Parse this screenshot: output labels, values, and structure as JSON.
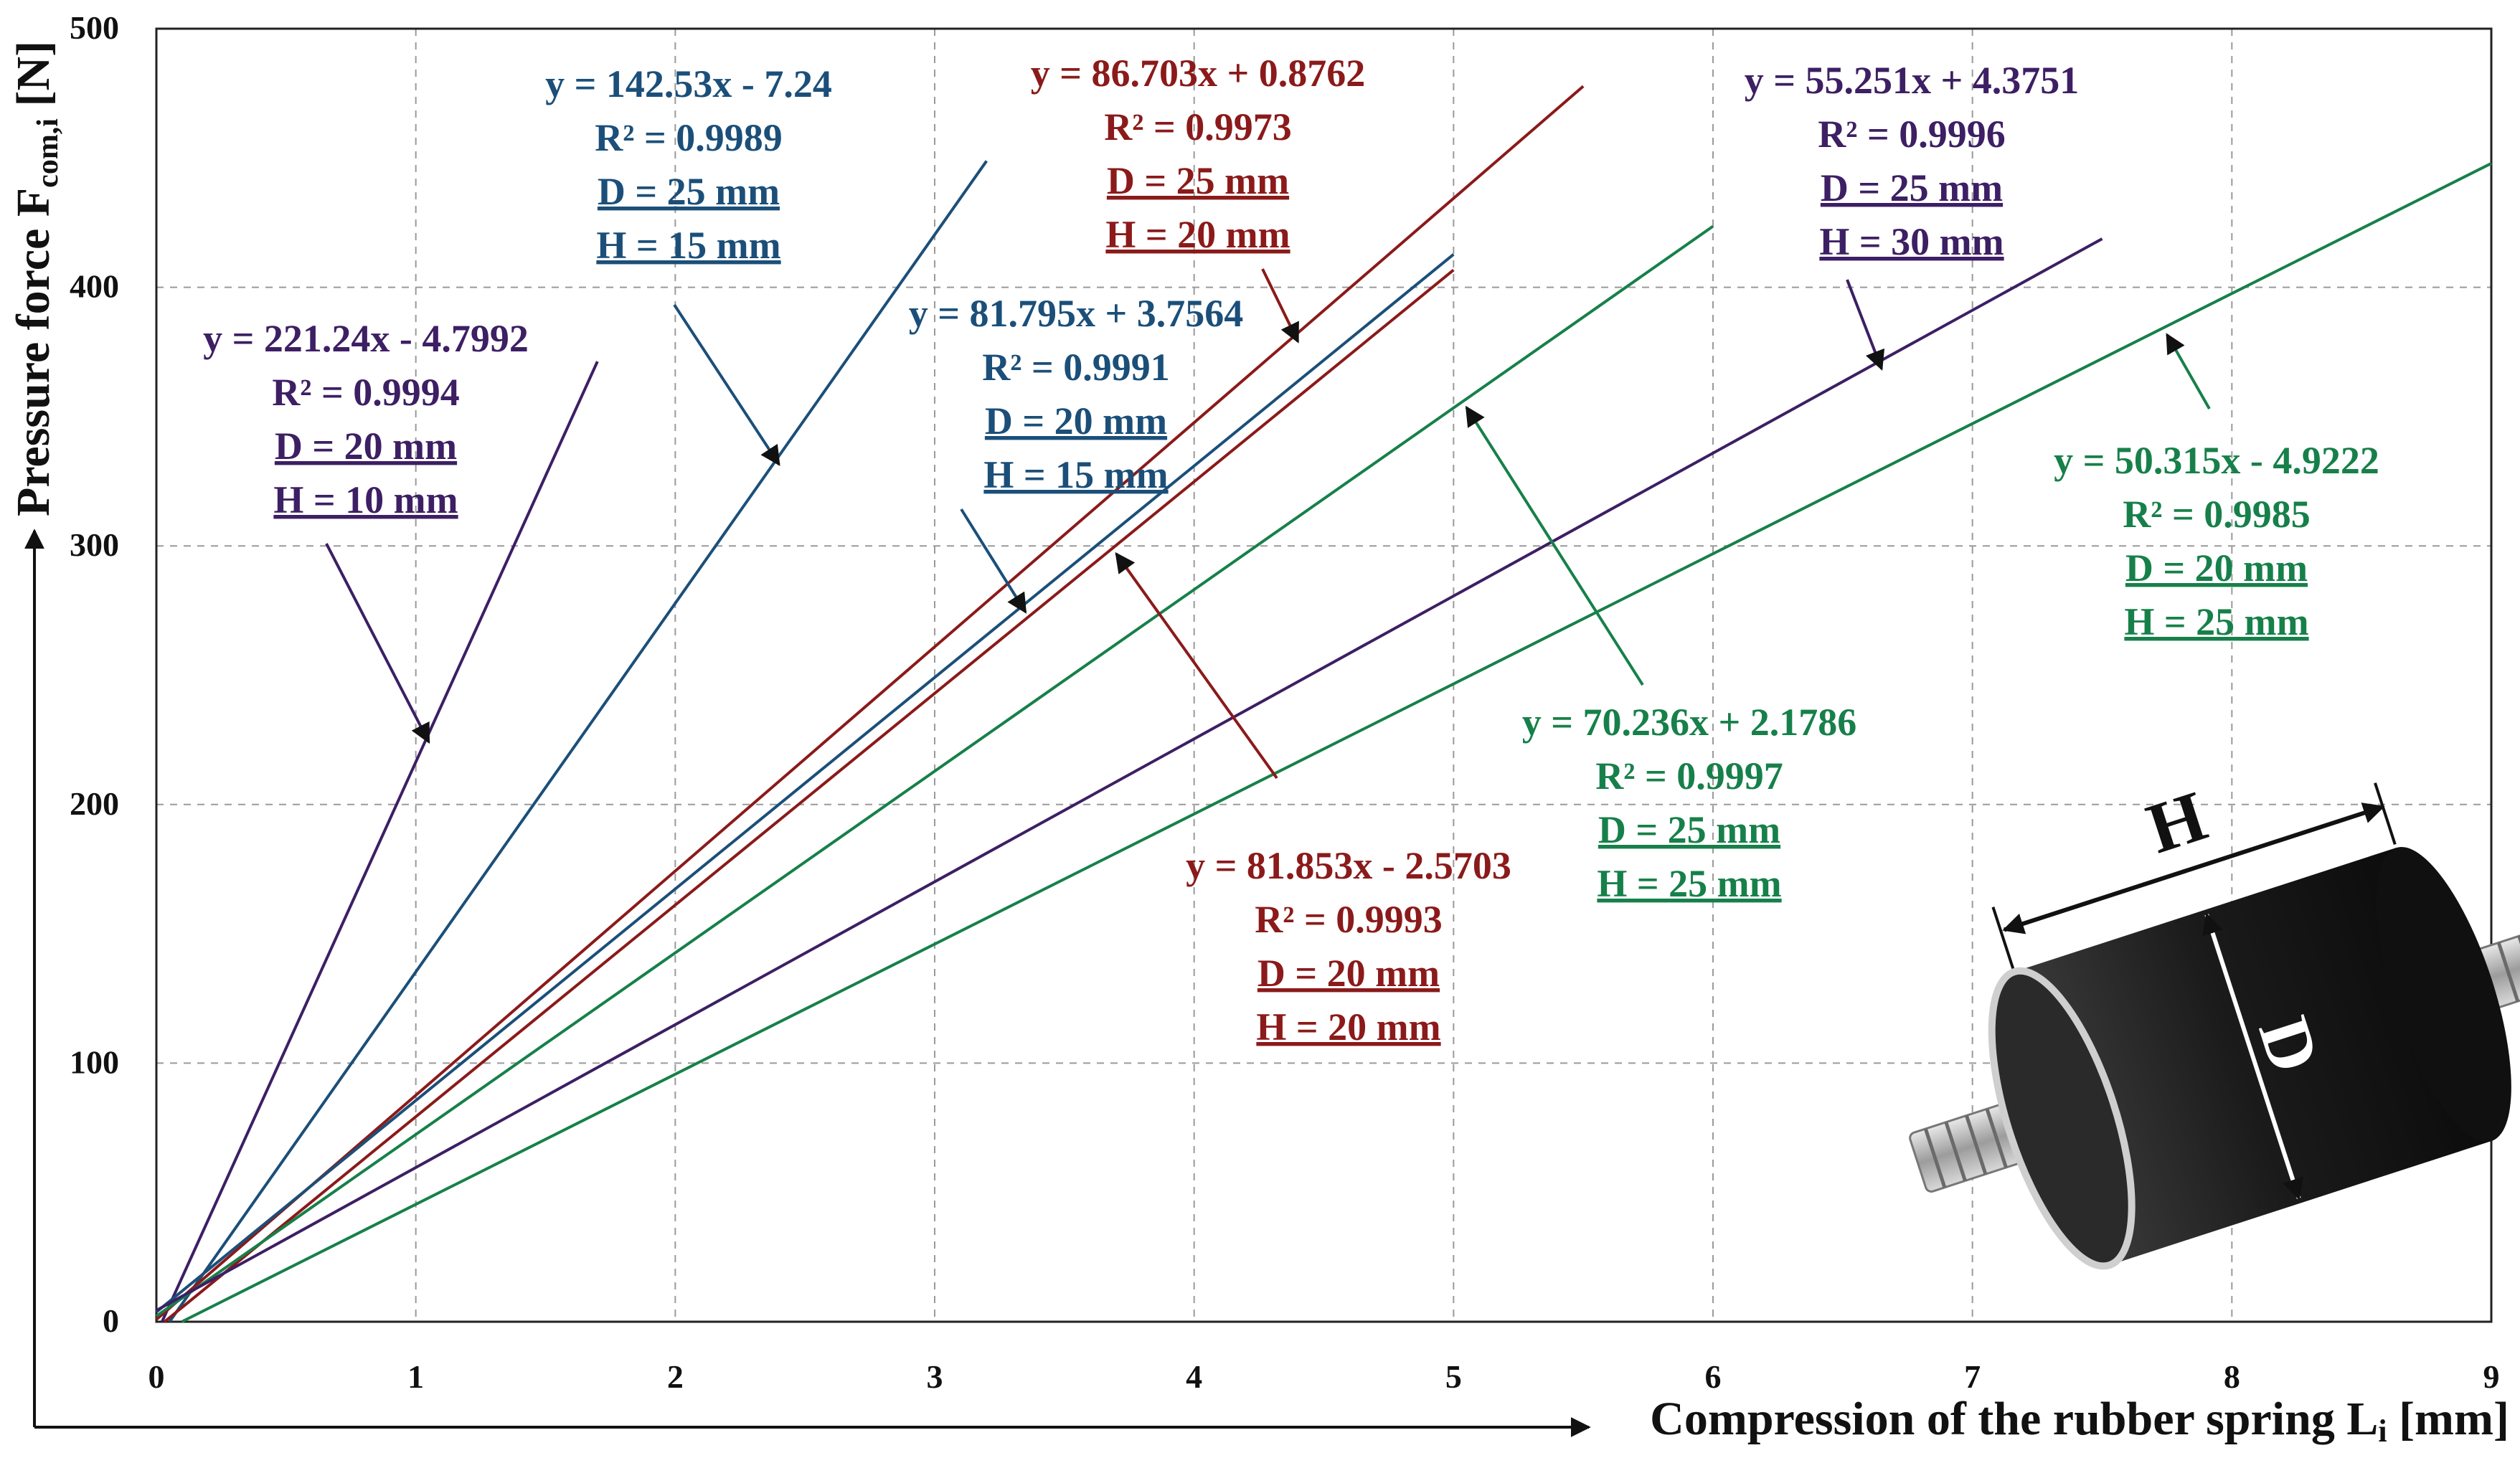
{
  "chart_data": {
    "type": "line",
    "title": "",
    "xlabel": "Compression of the rubber spring L",
    "xlabel_sub": "i",
    "xlabel_unit": " [mm]",
    "ylabel": "Pressure force F",
    "ylabel_sub": "com,i",
    "ylabel_unit": " [N]",
    "xlim": [
      0,
      9
    ],
    "ylim": [
      0,
      500
    ],
    "xticks": [
      "0",
      "1",
      "2",
      "3",
      "4",
      "5",
      "6",
      "7",
      "8",
      "9"
    ],
    "yticks": [
      "0",
      "100",
      "200",
      "300",
      "400",
      "500"
    ],
    "grid": true,
    "series": [
      {
        "name": "D = 20 mm, H = 10 mm",
        "slope": 221.24,
        "intercept": -4.7992,
        "x_end": 1.7,
        "color": "#3d1f64",
        "annotation": [
          "y = 221.24x - 4.7992",
          "R² = 0.9994",
          "D = 20 mm",
          "H = 10 mm"
        ]
      },
      {
        "name": "D = 25 mm, H = 15 mm",
        "slope": 142.53,
        "intercept": -7.24,
        "x_end": 3.2,
        "color": "#1b4f79",
        "annotation": [
          "y = 142.53x - 7.24",
          "R² = 0.9989",
          "D = 25 mm",
          "H = 15 mm"
        ]
      },
      {
        "name": "D = 25 mm, H = 20 mm",
        "slope": 86.703,
        "intercept": 0.8762,
        "x_end": 5.5,
        "color": "#8b1a1a",
        "annotation": [
          "y = 86.703x + 0.8762",
          "R² = 0.9973",
          "D = 25 mm",
          "H = 20 mm"
        ]
      },
      {
        "name": "D = 20 mm, H = 15 mm",
        "slope": 81.795,
        "intercept": 3.7564,
        "x_end": 5.0,
        "color": "#1b4f79",
        "annotation": [
          "y = 81.795x + 3.7564",
          "R² = 0.9991",
          "D = 20 mm",
          "H = 15 mm"
        ]
      },
      {
        "name": "D = 20 mm, H = 20 mm",
        "slope": 81.853,
        "intercept": -2.5703,
        "x_end": 5.0,
        "color": "#8b1a1a",
        "annotation": [
          "y = 81.853x - 2.5703",
          "R² = 0.9993",
          "D = 20 mm",
          "H = 20 mm"
        ]
      },
      {
        "name": "D = 25 mm, H = 25 mm",
        "slope": 70.236,
        "intercept": 2.1786,
        "x_end": 6.0,
        "color": "#17804a",
        "annotation": [
          "y = 70.236x + 2.1786",
          "R² = 0.9997",
          "D = 25 mm",
          "H = 25 mm"
        ]
      },
      {
        "name": "D = 25 mm, H = 30 mm",
        "slope": 55.251,
        "intercept": 4.3751,
        "x_end": 7.5,
        "color": "#3d1f64",
        "annotation": [
          "y = 55.251x + 4.3751",
          "R² = 0.9996",
          "D = 25 mm",
          "H = 30 mm"
        ]
      },
      {
        "name": "D = 20 mm, H = 25 mm",
        "slope": 50.315,
        "intercept": -4.9222,
        "x_end": 9.0,
        "color": "#17804a",
        "annotation": [
          "y = 50.315x - 4.9222",
          "R² = 0.9985",
          "D = 20 mm",
          "H = 25 mm"
        ]
      }
    ],
    "inset_labels": [
      "H",
      "D"
    ]
  }
}
